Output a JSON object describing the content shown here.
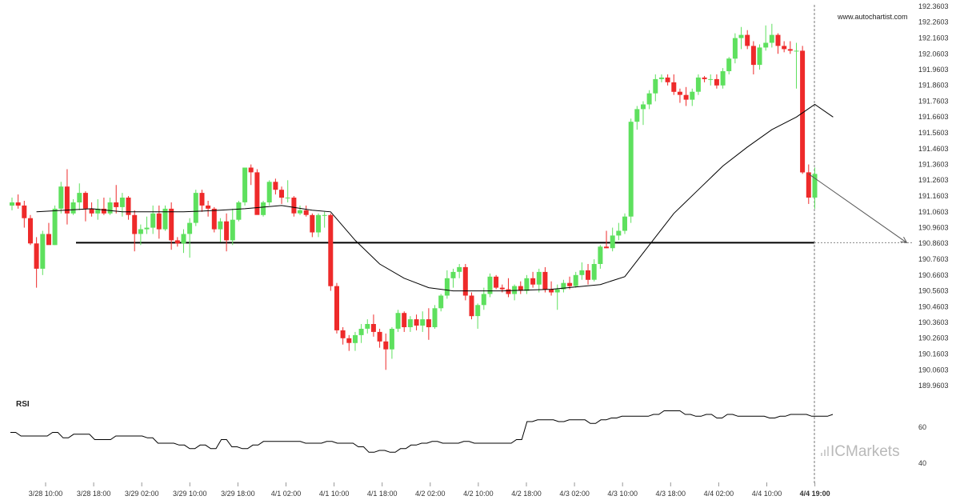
{
  "brand": "www.autochartist.com",
  "logo": {
    "prefix": "IC",
    "suffix": "Markets"
  },
  "colors": {
    "up": "#5ee05e",
    "down": "#ee2a2a",
    "line": "#000000",
    "forecast": "#555555",
    "vline": "#777777"
  },
  "chart_data": [
    {
      "type": "candlestick",
      "title": "",
      "x_tick_labels": [
        "3/28 10:00",
        "3/28 18:00",
        "3/29 02:00",
        "3/29 10:00",
        "3/29 18:00",
        "4/1 02:00",
        "4/1 10:00",
        "4/1 18:00",
        "4/2 02:00",
        "4/2 10:00",
        "4/2 18:00",
        "4/3 02:00",
        "4/3 10:00",
        "4/3 18:00",
        "4/4 02:00",
        "4/4 10:00",
        "4/4 19:00"
      ],
      "y_tick_labels": [
        "192.3603",
        "192.2603",
        "192.1603",
        "192.0603",
        "191.9603",
        "191.8603",
        "191.7603",
        "191.6603",
        "191.5603",
        "191.4603",
        "191.3603",
        "191.2603",
        "191.1603",
        "191.0603",
        "190.9603",
        "190.8603",
        "190.7603",
        "190.6603",
        "190.5603",
        "190.4603",
        "190.3603",
        "190.2603",
        "190.1603",
        "190.0603",
        "189.9603"
      ],
      "ylim": [
        189.9603,
        192.3603
      ],
      "grid": false,
      "support_level": 190.865,
      "candles": [
        [
          191.1,
          191.15,
          191.07,
          191.12
        ],
        [
          191.12,
          191.17,
          191.08,
          191.1
        ],
        [
          191.1,
          191.13,
          190.96,
          191.02
        ],
        [
          191.02,
          191.04,
          190.85,
          190.86
        ],
        [
          190.86,
          190.9,
          190.58,
          190.7
        ],
        [
          190.7,
          190.94,
          190.66,
          190.92
        ],
        [
          190.92,
          190.99,
          190.86,
          190.85
        ],
        [
          190.85,
          191.1,
          190.85,
          191.08
        ],
        [
          191.08,
          191.25,
          191.05,
          191.22
        ],
        [
          191.22,
          191.33,
          190.98,
          191.05
        ],
        [
          191.05,
          191.14,
          191.04,
          191.12
        ],
        [
          191.12,
          191.24,
          191.07,
          191.18
        ],
        [
          191.18,
          191.19,
          191.0,
          191.08
        ],
        [
          191.08,
          191.12,
          191.03,
          191.05
        ],
        [
          191.05,
          191.14,
          191.01,
          191.08
        ],
        [
          191.08,
          191.15,
          191.04,
          191.05
        ],
        [
          191.05,
          191.15,
          191.04,
          191.12
        ],
        [
          191.12,
          191.23,
          191.05,
          191.09
        ],
        [
          191.09,
          191.18,
          191.03,
          191.15
        ],
        [
          191.15,
          191.16,
          191.01,
          191.04
        ],
        [
          191.04,
          191.07,
          190.81,
          190.92
        ],
        [
          190.92,
          190.98,
          190.85,
          190.95
        ],
        [
          190.95,
          191.03,
          190.92,
          190.96
        ],
        [
          190.96,
          191.1,
          190.92,
          191.05
        ],
        [
          191.05,
          191.1,
          190.89,
          190.95
        ],
        [
          190.95,
          191.1,
          190.94,
          191.08
        ],
        [
          191.08,
          191.12,
          190.82,
          190.88
        ],
        [
          190.88,
          190.9,
          190.84,
          190.86
        ],
        [
          190.86,
          190.95,
          190.8,
          190.92
        ],
        [
          190.92,
          191.02,
          190.77,
          190.99
        ],
        [
          190.99,
          191.2,
          190.97,
          191.18
        ],
        [
          191.18,
          191.2,
          191.06,
          191.1
        ],
        [
          191.1,
          191.13,
          191.03,
          191.08
        ],
        [
          191.08,
          191.09,
          190.93,
          190.95
        ],
        [
          190.95,
          191.02,
          190.87,
          191.0
        ],
        [
          191.0,
          191.05,
          190.81,
          190.88
        ],
        [
          190.88,
          191.08,
          190.85,
          191.01
        ],
        [
          191.01,
          191.13,
          191.0,
          191.12
        ],
        [
          191.12,
          191.34,
          191.1,
          191.34
        ],
        [
          191.34,
          191.36,
          191.23,
          191.31
        ],
        [
          191.31,
          191.33,
          191.05,
          191.04
        ],
        [
          191.04,
          191.13,
          191.03,
          191.12
        ],
        [
          191.12,
          191.26,
          191.1,
          191.25
        ],
        [
          191.25,
          191.27,
          191.17,
          191.2
        ],
        [
          191.2,
          191.22,
          191.11,
          191.15
        ],
        [
          191.15,
          191.26,
          191.12,
          191.15
        ],
        [
          191.15,
          191.16,
          191.03,
          191.05
        ],
        [
          191.05,
          191.1,
          191.04,
          191.07
        ],
        [
          191.07,
          191.1,
          191.03,
          191.04
        ],
        [
          191.04,
          191.05,
          190.9,
          190.93
        ],
        [
          190.93,
          191.05,
          190.9,
          191.04
        ],
        [
          191.04,
          191.06,
          190.96,
          191.04
        ],
        [
          191.04,
          191.05,
          190.56,
          190.59
        ],
        [
          190.59,
          190.61,
          190.29,
          190.31
        ],
        [
          190.31,
          190.33,
          190.22,
          190.26
        ],
        [
          190.26,
          190.28,
          190.18,
          190.23
        ],
        [
          190.23,
          190.3,
          190.18,
          190.28
        ],
        [
          190.28,
          190.35,
          190.23,
          190.32
        ],
        [
          190.32,
          190.38,
          190.29,
          190.35
        ],
        [
          190.35,
          190.41,
          190.27,
          190.3
        ],
        [
          190.3,
          190.32,
          190.2,
          190.24
        ],
        [
          190.24,
          190.29,
          190.06,
          190.19
        ],
        [
          190.19,
          190.33,
          190.13,
          190.32
        ],
        [
          190.32,
          190.44,
          190.3,
          190.42
        ],
        [
          190.42,
          190.43,
          190.3,
          190.33
        ],
        [
          190.33,
          190.4,
          190.3,
          190.38
        ],
        [
          190.38,
          190.41,
          190.31,
          190.34
        ],
        [
          190.34,
          190.43,
          190.3,
          190.38
        ],
        [
          190.38,
          190.45,
          190.25,
          190.33
        ],
        [
          190.33,
          190.47,
          190.32,
          190.45
        ],
        [
          190.45,
          190.54,
          190.43,
          190.53
        ],
        [
          190.53,
          190.69,
          190.51,
          190.64
        ],
        [
          190.64,
          190.7,
          190.58,
          190.68
        ],
        [
          190.68,
          190.73,
          190.64,
          190.71
        ],
        [
          190.71,
          190.73,
          190.5,
          190.53
        ],
        [
          190.53,
          190.55,
          190.38,
          190.4
        ],
        [
          190.4,
          190.48,
          190.32,
          190.47
        ],
        [
          190.47,
          190.58,
          190.44,
          190.54
        ],
        [
          190.54,
          190.67,
          190.52,
          190.65
        ],
        [
          190.65,
          190.66,
          190.57,
          190.58
        ],
        [
          190.58,
          190.6,
          190.55,
          190.57
        ],
        [
          190.57,
          190.64,
          190.52,
          190.54
        ],
        [
          190.54,
          190.6,
          190.5,
          190.59
        ],
        [
          190.59,
          190.62,
          190.54,
          190.56
        ],
        [
          190.56,
          190.66,
          190.54,
          190.64
        ],
        [
          190.64,
          190.68,
          190.58,
          190.6
        ],
        [
          190.6,
          190.7,
          190.55,
          190.68
        ],
        [
          190.68,
          190.71,
          190.55,
          190.57
        ],
        [
          190.57,
          190.62,
          190.53,
          190.55
        ],
        [
          190.55,
          190.6,
          190.44,
          190.57
        ],
        [
          190.57,
          190.63,
          190.55,
          190.61
        ],
        [
          190.61,
          190.65,
          190.57,
          190.59
        ],
        [
          190.59,
          190.68,
          190.58,
          190.66
        ],
        [
          190.66,
          190.74,
          190.63,
          190.69
        ],
        [
          190.69,
          190.73,
          190.6,
          190.63
        ],
        [
          190.63,
          190.76,
          190.62,
          190.73
        ],
        [
          190.73,
          190.85,
          190.7,
          190.84
        ],
        [
          190.84,
          190.94,
          190.83,
          190.83
        ],
        [
          190.83,
          190.96,
          190.81,
          190.91
        ],
        [
          190.91,
          190.99,
          190.88,
          190.94
        ],
        [
          190.94,
          191.05,
          190.92,
          191.03
        ],
        [
          191.03,
          191.65,
          190.99,
          191.63
        ],
        [
          191.63,
          191.73,
          191.58,
          191.71
        ],
        [
          191.71,
          191.76,
          191.61,
          191.74
        ],
        [
          191.74,
          191.83,
          191.71,
          191.81
        ],
        [
          191.81,
          191.93,
          191.76,
          191.9
        ],
        [
          191.9,
          191.93,
          191.88,
          191.91
        ],
        [
          191.91,
          191.93,
          191.86,
          191.88
        ],
        [
          191.88,
          191.93,
          191.8,
          191.82
        ],
        [
          191.82,
          191.84,
          191.75,
          191.8
        ],
        [
          191.8,
          191.85,
          191.73,
          191.77
        ],
        [
          191.77,
          191.84,
          191.73,
          191.82
        ],
        [
          191.82,
          191.93,
          191.8,
          191.91
        ],
        [
          191.91,
          191.92,
          191.88,
          191.9
        ],
        [
          191.9,
          191.93,
          191.86,
          191.9
        ],
        [
          191.9,
          191.93,
          191.84,
          191.86
        ],
        [
          191.86,
          191.97,
          191.84,
          191.95
        ],
        [
          191.95,
          192.04,
          191.93,
          192.03
        ],
        [
          192.03,
          192.19,
          192.0,
          192.16
        ],
        [
          192.16,
          192.23,
          192.09,
          192.18
        ],
        [
          192.18,
          192.21,
          192.09,
          192.11
        ],
        [
          192.11,
          192.14,
          191.93,
          191.99
        ],
        [
          191.99,
          192.12,
          191.96,
          192.1
        ],
        [
          192.1,
          192.24,
          192.08,
          192.13
        ],
        [
          192.13,
          192.25,
          192.1,
          192.18
        ],
        [
          192.18,
          192.19,
          192.06,
          192.11
        ],
        [
          192.11,
          192.14,
          192.07,
          192.09
        ],
        [
          192.09,
          192.14,
          192.06,
          192.08
        ],
        [
          192.08,
          192.13,
          191.84,
          192.08
        ],
        [
          192.08,
          192.11,
          191.3,
          191.31
        ],
        [
          191.31,
          191.36,
          191.11,
          191.15
        ],
        [
          191.15,
          191.34,
          191.08,
          191.3
        ]
      ],
      "indicator_line": [
        [
          4,
          191.06
        ],
        [
          13,
          191.08
        ],
        [
          18,
          191.06
        ],
        [
          28,
          191.06
        ],
        [
          34,
          191.07
        ],
        [
          38,
          191.08
        ],
        [
          44,
          191.1
        ],
        [
          49,
          191.07
        ],
        [
          52,
          191.06
        ],
        [
          56,
          190.88
        ],
        [
          60,
          190.73
        ],
        [
          64,
          190.64
        ],
        [
          68,
          190.58
        ],
        [
          72,
          190.56
        ],
        [
          80,
          190.56
        ],
        [
          88,
          190.57
        ],
        [
          96,
          190.6
        ],
        [
          100,
          190.65
        ],
        [
          104,
          190.85
        ],
        [
          108,
          191.05
        ],
        [
          112,
          191.2
        ],
        [
          116,
          191.35
        ],
        [
          120,
          191.47
        ],
        [
          124,
          191.58
        ],
        [
          128,
          191.66
        ],
        [
          131,
          191.74
        ],
        [
          134,
          191.66
        ]
      ],
      "forecast": {
        "from": [
          130,
          191.3
        ],
        "to": [
          146,
          190.865
        ]
      }
    },
    {
      "type": "line",
      "title": "RSI",
      "y_tick_labels": [
        "60",
        "40"
      ],
      "ylim": [
        35,
        75
      ],
      "series": [
        {
          "values": [
            57,
            55,
            55,
            55,
            57,
            54,
            56,
            56,
            53,
            53,
            55,
            55,
            55,
            54,
            51,
            51,
            50,
            48,
            50,
            48,
            53,
            49,
            48,
            50,
            52,
            52,
            52,
            52,
            51,
            51,
            52,
            51,
            51,
            49,
            46,
            47,
            46,
            48,
            50,
            51,
            52,
            51,
            51,
            52,
            51,
            51,
            51,
            51,
            53,
            63,
            64,
            64,
            63,
            64,
            64,
            62,
            64,
            65,
            66,
            66,
            66,
            67,
            69,
            69,
            67,
            66,
            67,
            65,
            67,
            66,
            66,
            66,
            65,
            66,
            67,
            67,
            66,
            66,
            67
          ]
        }
      ]
    }
  ]
}
